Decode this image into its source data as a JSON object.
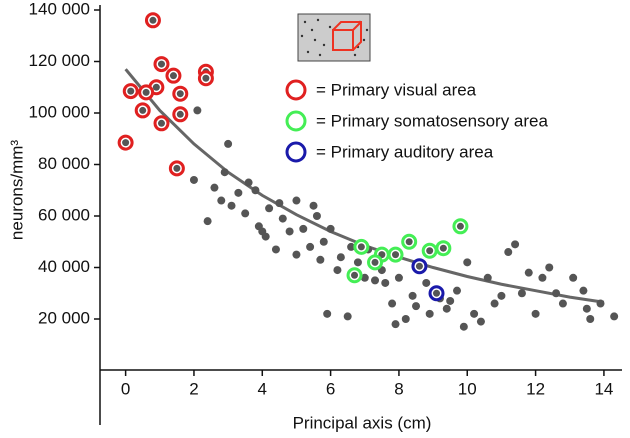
{
  "chart_data": {
    "type": "scatter",
    "x_label": "Principal axis (cm)",
    "y_label": "neurons/mm³",
    "xlim": [
      -0.75,
      14.5
    ],
    "ylim": [
      -20000,
      140000
    ],
    "xticks": [
      0,
      2,
      4,
      6,
      8,
      10,
      12,
      14
    ],
    "yticks": [
      {
        "value": 20000,
        "label": "20 000"
      },
      {
        "value": 40000,
        "label": "40 000"
      },
      {
        "value": 60000,
        "label": "60 000"
      },
      {
        "value": 80000,
        "label": "80 000"
      },
      {
        "value": 100000,
        "label": "100 000"
      },
      {
        "value": 120000,
        "label": "120 000"
      },
      {
        "value": 140000,
        "label": "140 000"
      }
    ],
    "points": {
      "color": "#555555",
      "x": [
        2.0,
        2.1,
        2.4,
        2.6,
        2.8,
        2.9,
        3.0,
        3.1,
        3.3,
        3.5,
        3.6,
        3.8,
        3.9,
        4.0,
        4.1,
        4.2,
        4.4,
        4.5,
        4.6,
        4.8,
        5.0,
        5.0,
        5.2,
        5.4,
        5.5,
        5.6,
        5.7,
        5.8,
        5.9,
        6.0,
        6.2,
        6.3,
        6.5,
        6.6,
        6.8,
        7.0,
        7.1,
        7.3,
        7.5,
        7.6,
        7.8,
        7.9,
        8.0,
        8.2,
        8.4,
        8.5,
        8.8,
        8.9,
        9.2,
        9.4,
        9.5,
        9.7,
        9.9,
        10.0,
        10.2,
        10.4,
        10.6,
        10.8,
        11.0,
        11.2,
        11.4,
        11.6,
        11.8,
        12.0,
        12.2,
        12.4,
        12.6,
        12.8,
        13.1,
        13.4,
        13.5,
        13.6,
        14.3,
        13.9
      ],
      "values": [
        74000,
        101000,
        58000,
        71000,
        66000,
        77000,
        88000,
        64000,
        69000,
        61000,
        73000,
        70000,
        56000,
        54000,
        52000,
        63000,
        47000,
        65000,
        59000,
        54000,
        66000,
        45000,
        55000,
        48000,
        64000,
        60000,
        43000,
        50000,
        22000,
        55000,
        39000,
        44000,
        21000,
        48000,
        42000,
        36000,
        47000,
        35000,
        39000,
        34000,
        26000,
        18000,
        36000,
        20000,
        29000,
        25000,
        34000,
        22000,
        28000,
        24000,
        27000,
        31000,
        17000,
        42000,
        22000,
        19000,
        36000,
        26000,
        29000,
        46000,
        49000,
        30000,
        38000,
        22000,
        36000,
        40000,
        30000,
        26000,
        36000,
        31000,
        24000,
        20000,
        21000,
        26000
      ]
    },
    "series": [
      {
        "name": "= Primary visual area",
        "color": "#e02020",
        "x": [
          0,
          0.15,
          0.8,
          0.5,
          0.9,
          1.05,
          1.4,
          1.6,
          1.05,
          1.6,
          2.35,
          2.35,
          1.5,
          0.6
        ],
        "values": [
          88500,
          108500,
          136000,
          101000,
          110000,
          119000,
          114500,
          107500,
          96000,
          99500,
          116000,
          113500,
          78500,
          108000
        ]
      },
      {
        "name": "= Primary somatosensory area",
        "color": "#44ee55",
        "x": [
          6.7,
          6.9,
          7.5,
          7.9,
          8.3,
          8.9,
          9.3,
          9.8,
          7.3
        ],
        "values": [
          37000,
          48000,
          45000,
          45000,
          50000,
          46500,
          47500,
          56000,
          42000
        ]
      },
      {
        "name": "= Primary auditory area",
        "color": "#1a1aaa",
        "x": [
          8.6,
          9.1
        ],
        "values": [
          40500,
          30000
        ]
      }
    ],
    "fit": {
      "color": "#666666",
      "x": [
        0,
        1,
        2,
        3,
        4,
        5,
        6,
        7,
        8,
        9,
        10,
        11,
        12,
        13,
        14
      ],
      "values": [
        117000,
        101000,
        88000,
        77000,
        68000,
        60500,
        54000,
        48500,
        44000,
        40000,
        36500,
        33500,
        31000,
        28500,
        26500
      ]
    }
  }
}
